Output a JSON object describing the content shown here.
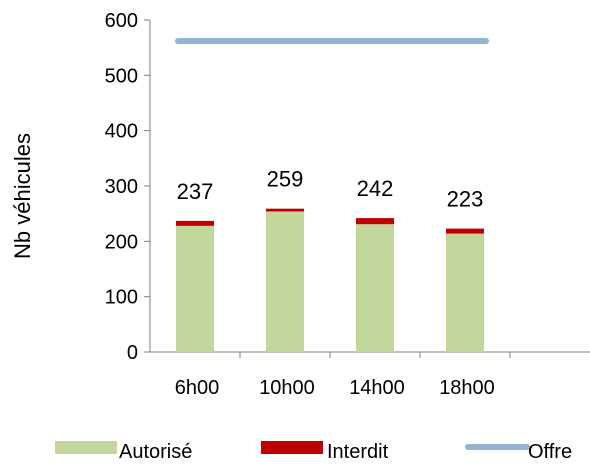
{
  "chart_data": {
    "type": "bar",
    "stacked": true,
    "categories": [
      "6h00",
      "10h00",
      "14h00",
      "18h00"
    ],
    "series": [
      {
        "name": "Autorisé",
        "values": [
          228,
          254,
          231,
          214
        ],
        "color": "#c3d69b"
      },
      {
        "name": "Interdit",
        "values": [
          9,
          5,
          11,
          9
        ],
        "color": "#c00000"
      }
    ],
    "totals": [
      237,
      259,
      242,
      223
    ],
    "offre": {
      "name": "Offre",
      "value": 562,
      "color": "#95b3d7"
    },
    "title": "",
    "xlabel": "",
    "ylabel": "Nb véhicules",
    "ylim": [
      0,
      600
    ],
    "yticks": [
      0,
      100,
      200,
      300,
      400,
      500,
      600
    ],
    "grid": false,
    "legend_position": "bottom"
  }
}
